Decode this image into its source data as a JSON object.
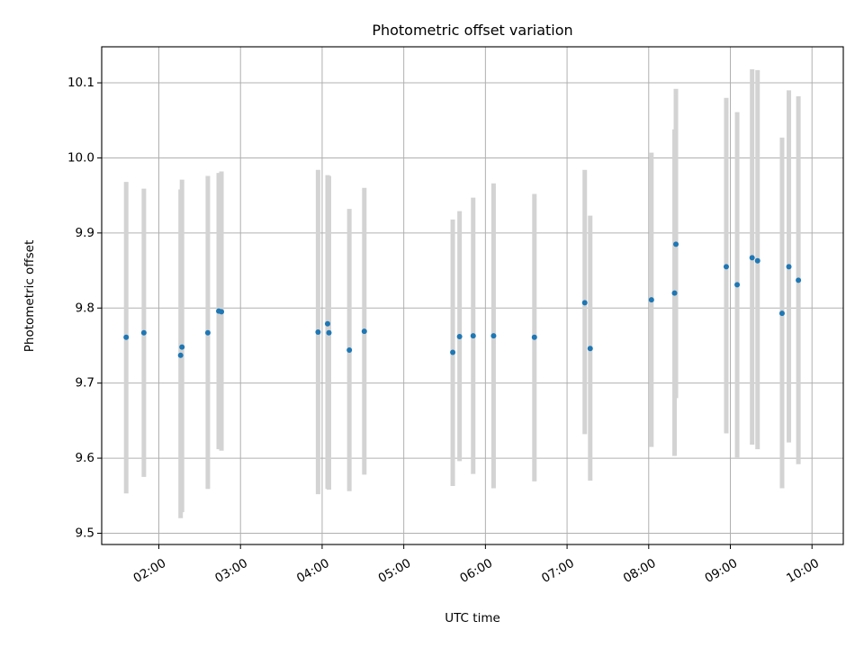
{
  "chart_data": {
    "type": "scatter",
    "title": "Photometric offset variation",
    "xlabel": "UTC time",
    "ylabel": "Photometric offset",
    "xlim": [
      "01:18",
      "10:23"
    ],
    "ylim": [
      9.485,
      10.148
    ],
    "x_ticks": [
      "02:00",
      "03:00",
      "04:00",
      "05:00",
      "06:00",
      "07:00",
      "08:00",
      "09:00",
      "10:00"
    ],
    "y_ticks": [
      "9.5",
      "9.6",
      "9.7",
      "9.8",
      "9.9",
      "10.0",
      "10.1"
    ],
    "grid": true,
    "colors": {
      "marker": "#1f77b4",
      "errorbar": "#d3d3d3",
      "grid": "#b0b0b0"
    },
    "points": [
      {
        "x": "01:36",
        "y": 9.761,
        "err_low": 9.553,
        "err_high": 9.968
      },
      {
        "x": "01:49",
        "y": 9.767,
        "err_low": 9.575,
        "err_high": 9.959
      },
      {
        "x": "02:16",
        "y": 9.737,
        "err_low": 9.52,
        "err_high": 9.958
      },
      {
        "x": "02:17",
        "y": 9.748,
        "err_low": 9.528,
        "err_high": 9.971
      },
      {
        "x": "02:36",
        "y": 9.767,
        "err_low": 9.559,
        "err_high": 9.976
      },
      {
        "x": "02:44",
        "y": 9.796,
        "err_low": 9.612,
        "err_high": 9.98
      },
      {
        "x": "02:46",
        "y": 9.795,
        "err_low": 9.61,
        "err_high": 9.982
      },
      {
        "x": "03:57",
        "y": 9.768,
        "err_low": 9.552,
        "err_high": 9.984
      },
      {
        "x": "04:04",
        "y": 9.779,
        "err_low": 9.559,
        "err_high": 9.977
      },
      {
        "x": "04:05",
        "y": 9.767,
        "err_low": 9.558,
        "err_high": 9.976
      },
      {
        "x": "04:20",
        "y": 9.744,
        "err_low": 9.556,
        "err_high": 9.932
      },
      {
        "x": "04:31",
        "y": 9.769,
        "err_low": 9.578,
        "err_high": 9.96
      },
      {
        "x": "05:36",
        "y": 9.741,
        "err_low": 9.563,
        "err_high": 9.918
      },
      {
        "x": "05:41",
        "y": 9.762,
        "err_low": 9.596,
        "err_high": 9.929
      },
      {
        "x": "05:51",
        "y": 9.763,
        "err_low": 9.579,
        "err_high": 9.947
      },
      {
        "x": "06:06",
        "y": 9.763,
        "err_low": 9.56,
        "err_high": 9.966
      },
      {
        "x": "06:36",
        "y": 9.761,
        "err_low": 9.569,
        "err_high": 9.952
      },
      {
        "x": "07:13",
        "y": 9.807,
        "err_low": 9.632,
        "err_high": 9.984
      },
      {
        "x": "07:17",
        "y": 9.746,
        "err_low": 9.57,
        "err_high": 9.923
      },
      {
        "x": "08:02",
        "y": 9.811,
        "err_low": 9.615,
        "err_high": 10.007
      },
      {
        "x": "08:19",
        "y": 9.82,
        "err_low": 9.603,
        "err_high": 10.038
      },
      {
        "x": "08:20",
        "y": 9.885,
        "err_low": 9.68,
        "err_high": 10.092
      },
      {
        "x": "08:57",
        "y": 9.855,
        "err_low": 9.633,
        "err_high": 10.08
      },
      {
        "x": "09:05",
        "y": 9.831,
        "err_low": 9.601,
        "err_high": 10.061
      },
      {
        "x": "09:16",
        "y": 9.867,
        "err_low": 9.618,
        "err_high": 10.118
      },
      {
        "x": "09:20",
        "y": 9.863,
        "err_low": 9.612,
        "err_high": 10.117
      },
      {
        "x": "09:38",
        "y": 9.793,
        "err_low": 9.56,
        "err_high": 10.027
      },
      {
        "x": "09:43",
        "y": 9.855,
        "err_low": 9.621,
        "err_high": 10.09
      },
      {
        "x": "09:50",
        "y": 9.837,
        "err_low": 9.592,
        "err_high": 10.082
      }
    ]
  }
}
